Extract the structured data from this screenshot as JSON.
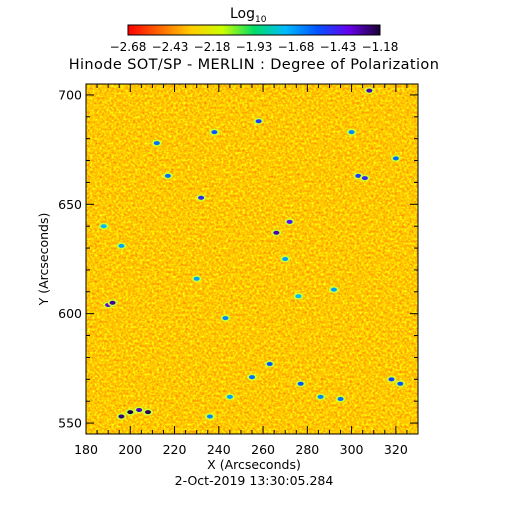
{
  "chart_data": {
    "type": "heatmap",
    "title": "Hinode SOT/SP - MERLIN : Degree of Polarization",
    "xlabel": "X (Arcseconds)",
    "ylabel": "Y (Arcseconds)",
    "timestamp": "2-Oct-2019 13:30:05.284",
    "xlim": [
      180,
      330
    ],
    "ylim": [
      545,
      705
    ],
    "x_ticks": [
      180,
      200,
      220,
      240,
      260,
      280,
      300,
      320
    ],
    "y_ticks": [
      550,
      600,
      650,
      700
    ],
    "grid": false,
    "colorbar": {
      "title_main": "Log",
      "title_sub": "10",
      "scale": "log10",
      "range": [
        -2.68,
        -1.18
      ],
      "tick_values": [
        -2.68,
        -2.43,
        -2.18,
        -1.93,
        -1.68,
        -1.43,
        -1.18
      ],
      "tick_labels": [
        "−2.68",
        "−2.43",
        "−2.18",
        "−1.93",
        "−1.68",
        "−1.43",
        "−1.18"
      ],
      "colors": [
        "#ff0000",
        "#ff6600",
        "#ffcc00",
        "#ccff00",
        "#00dd66",
        "#00bbff",
        "#0055ff",
        "#6600ee",
        "#1a0033"
      ]
    },
    "features": [
      {
        "x": 196,
        "y": 553,
        "level": -1.25
      },
      {
        "x": 200,
        "y": 555,
        "level": -1.2
      },
      {
        "x": 204,
        "y": 556,
        "level": -1.3
      },
      {
        "x": 208,
        "y": 555,
        "level": -1.22
      },
      {
        "x": 190,
        "y": 604,
        "level": -1.35
      },
      {
        "x": 192,
        "y": 605,
        "level": -1.28
      },
      {
        "x": 266,
        "y": 637,
        "level": -1.3
      },
      {
        "x": 232,
        "y": 653,
        "level": -1.45
      },
      {
        "x": 272,
        "y": 642,
        "level": -1.4
      },
      {
        "x": 258,
        "y": 688,
        "level": -1.5
      },
      {
        "x": 238,
        "y": 683,
        "level": -1.55
      },
      {
        "x": 217,
        "y": 663,
        "level": -1.6
      },
      {
        "x": 303,
        "y": 663,
        "level": -1.5
      },
      {
        "x": 308,
        "y": 702,
        "level": -1.3
      },
      {
        "x": 306,
        "y": 662,
        "level": -1.45
      },
      {
        "x": 300,
        "y": 683,
        "level": -1.65
      },
      {
        "x": 320,
        "y": 671,
        "level": -1.6
      },
      {
        "x": 270,
        "y": 625,
        "level": -1.7
      },
      {
        "x": 277,
        "y": 568,
        "level": -1.55
      },
      {
        "x": 263,
        "y": 577,
        "level": -1.55
      },
      {
        "x": 295,
        "y": 561,
        "level": -1.6
      },
      {
        "x": 318,
        "y": 570,
        "level": -1.5
      },
      {
        "x": 322,
        "y": 568,
        "level": -1.55
      },
      {
        "x": 243,
        "y": 598,
        "level": -1.65
      },
      {
        "x": 245,
        "y": 562,
        "level": -1.7
      },
      {
        "x": 230,
        "y": 616,
        "level": -1.7
      },
      {
        "x": 212,
        "y": 678,
        "level": -1.6
      },
      {
        "x": 236,
        "y": 553,
        "level": -1.65
      },
      {
        "x": 255,
        "y": 571,
        "level": -1.6
      },
      {
        "x": 286,
        "y": 562,
        "level": -1.65
      },
      {
        "x": 196,
        "y": 631,
        "level": -1.7
      },
      {
        "x": 292,
        "y": 611,
        "level": -1.7
      },
      {
        "x": 188,
        "y": 640,
        "level": -1.75
      },
      {
        "x": 276,
        "y": 608,
        "level": -1.75
      }
    ]
  }
}
